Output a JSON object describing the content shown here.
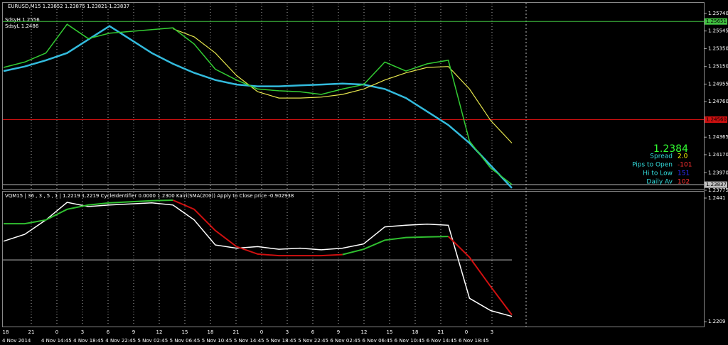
{
  "header": {
    "title": "EURUSD,M15  1.23852  1.23875  1.23821  1.23837",
    "sdsy_high": "SdsyH 1.2556",
    "sdsy_low": "SdsyL 1.2486",
    "indicator": "VQM15 | 36 , 3 , 5 , 1 | 1.2219 1.2219  CycleIdentifier 0.0000 1.2300  Kairi(SMA(200)) Apply to Close price -0.902938"
  },
  "info": {
    "price": "1.2384",
    "rows": [
      {
        "label": "Spread",
        "value": "2.0",
        "color": "#ffff00"
      },
      {
        "label": "Pips to Open",
        "value": "-101",
        "color": "#ff3030"
      },
      {
        "label": "Hi to Low",
        "value": "151",
        "color": "#3030ff"
      },
      {
        "label": "Daily Av",
        "value": "102",
        "color": "#ff3030"
      }
    ]
  },
  "chart_data": [
    {
      "type": "line",
      "ylim": [
        1.23775,
        1.2585
      ],
      "yticks": [
        {
          "value": 1.2574,
          "label": "1.25740"
        },
        {
          "value": 1.25545,
          "label": "1.25545"
        },
        {
          "value": 1.2535,
          "label": "1.25350"
        },
        {
          "value": 1.2515,
          "label": "1.25150"
        },
        {
          "value": 1.24955,
          "label": "1.24955"
        },
        {
          "value": 1.2476,
          "label": "1.24760"
        },
        {
          "value": 1.24365,
          "label": "1.24365"
        },
        {
          "value": 1.2417,
          "label": "1.24170"
        },
        {
          "value": 1.2397,
          "label": "1.23970"
        },
        {
          "value": 1.23775,
          "label": "1.23775"
        }
      ],
      "levels": [
        {
          "value": 1.25651,
          "label": "1.25651",
          "color": "#40c040"
        },
        {
          "value": 1.2456,
          "label": "1.24560",
          "color": "#d01010"
        },
        {
          "value": 1.23837,
          "label": "1.23837",
          "color": "#c0c0c0"
        }
      ],
      "series": [
        {
          "color": "#33bbdd",
          "width": 2.5,
          "values": [
            1.251,
            1.2515,
            1.2522,
            1.253,
            1.2545,
            1.256,
            1.2545,
            1.253,
            1.2518,
            1.2508,
            1.25,
            1.2495,
            1.2493,
            1.2493,
            1.2494,
            1.2495,
            1.2496,
            1.2495,
            1.249,
            1.248,
            1.2465,
            1.245,
            1.243,
            1.2405,
            1.238
          ]
        },
        {
          "color": "#e6e64d",
          "width": 1.2,
          "values": [
            null,
            null,
            null,
            null,
            null,
            null,
            null,
            null,
            1.2557,
            1.2548,
            1.253,
            1.2505,
            1.2487,
            1.248,
            1.248,
            1.2481,
            1.2484,
            1.249,
            1.25,
            1.2508,
            1.2514,
            1.2515,
            1.249,
            1.2455,
            1.243
          ]
        },
        {
          "color": "#33cc33",
          "width": 1.5,
          "values": [
            1.2514,
            1.252,
            1.253,
            1.2562,
            1.2546,
            1.2552,
            1.2554,
            1.2556,
            1.2558,
            1.254,
            1.2512,
            1.25,
            1.249,
            1.2488,
            1.2487,
            1.2484,
            1.249,
            1.2495,
            1.252,
            1.251,
            1.2518,
            1.2522,
            1.2432,
            1.2402,
            1.2384
          ]
        }
      ]
    },
    {
      "type": "line",
      "ylim": [
        1.22,
        1.2453
      ],
      "yticks": [
        1.2441,
        1.2209
      ],
      "levels": [
        {
          "value": 1.2325,
          "color": "#c0c0c0"
        }
      ],
      "series": [
        {
          "color": "#ffffff",
          "width": 1.5,
          "values": [
            1.236,
            1.2373,
            1.24,
            1.2433,
            1.2425,
            1.2428,
            1.243,
            1.2432,
            1.2428,
            1.24,
            1.2353,
            1.2347,
            1.235,
            1.2345,
            1.2347,
            1.2344,
            1.2347,
            1.2355,
            1.2387,
            1.239,
            1.2392,
            1.239,
            1.2253,
            1.223,
            1.2219
          ]
        },
        {
          "color": "#30c030",
          "width": 2,
          "values": [
            1.2393,
            1.2393,
            1.24,
            1.242,
            1.2428,
            1.2432,
            1.2434,
            1.2436,
            1.2437,
            null,
            null,
            null,
            null,
            null,
            null,
            null,
            1.2335,
            1.2345,
            1.2362,
            1.2367,
            1.2368,
            1.2369,
            null,
            null,
            null
          ]
        },
        {
          "color": "#d01010",
          "width": 2,
          "values": [
            null,
            null,
            null,
            null,
            null,
            null,
            null,
            null,
            1.2437,
            1.242,
            1.238,
            1.235,
            1.2336,
            1.2333,
            1.2333,
            1.2333,
            1.2335,
            null,
            null,
            null,
            null,
            1.2369,
            1.233,
            1.2275,
            1.2222
          ]
        }
      ]
    }
  ],
  "time_axis": {
    "hours": [
      "18",
      "21",
      "0",
      "3",
      "6",
      "9",
      "12",
      "15",
      "18",
      "21",
      "0",
      "3",
      "6",
      "9",
      "12",
      "15",
      "18",
      "21",
      "0",
      "3"
    ],
    "dates": [
      "4 Nov 2014",
      "4 Nov 14:45",
      "4 Nov 18:45",
      "4 Nov 22:45",
      "5 Nov 02:45",
      "5 Nov 06:45",
      "5 Nov 10:45",
      "5 Nov 14:45",
      "5 Nov 18:45",
      "5 Nov 22:45",
      "6 Nov 02:45",
      "6 Nov 06:45",
      "6 Nov 10:45",
      "6 Nov 14:45",
      "6 Nov 18:45"
    ]
  }
}
